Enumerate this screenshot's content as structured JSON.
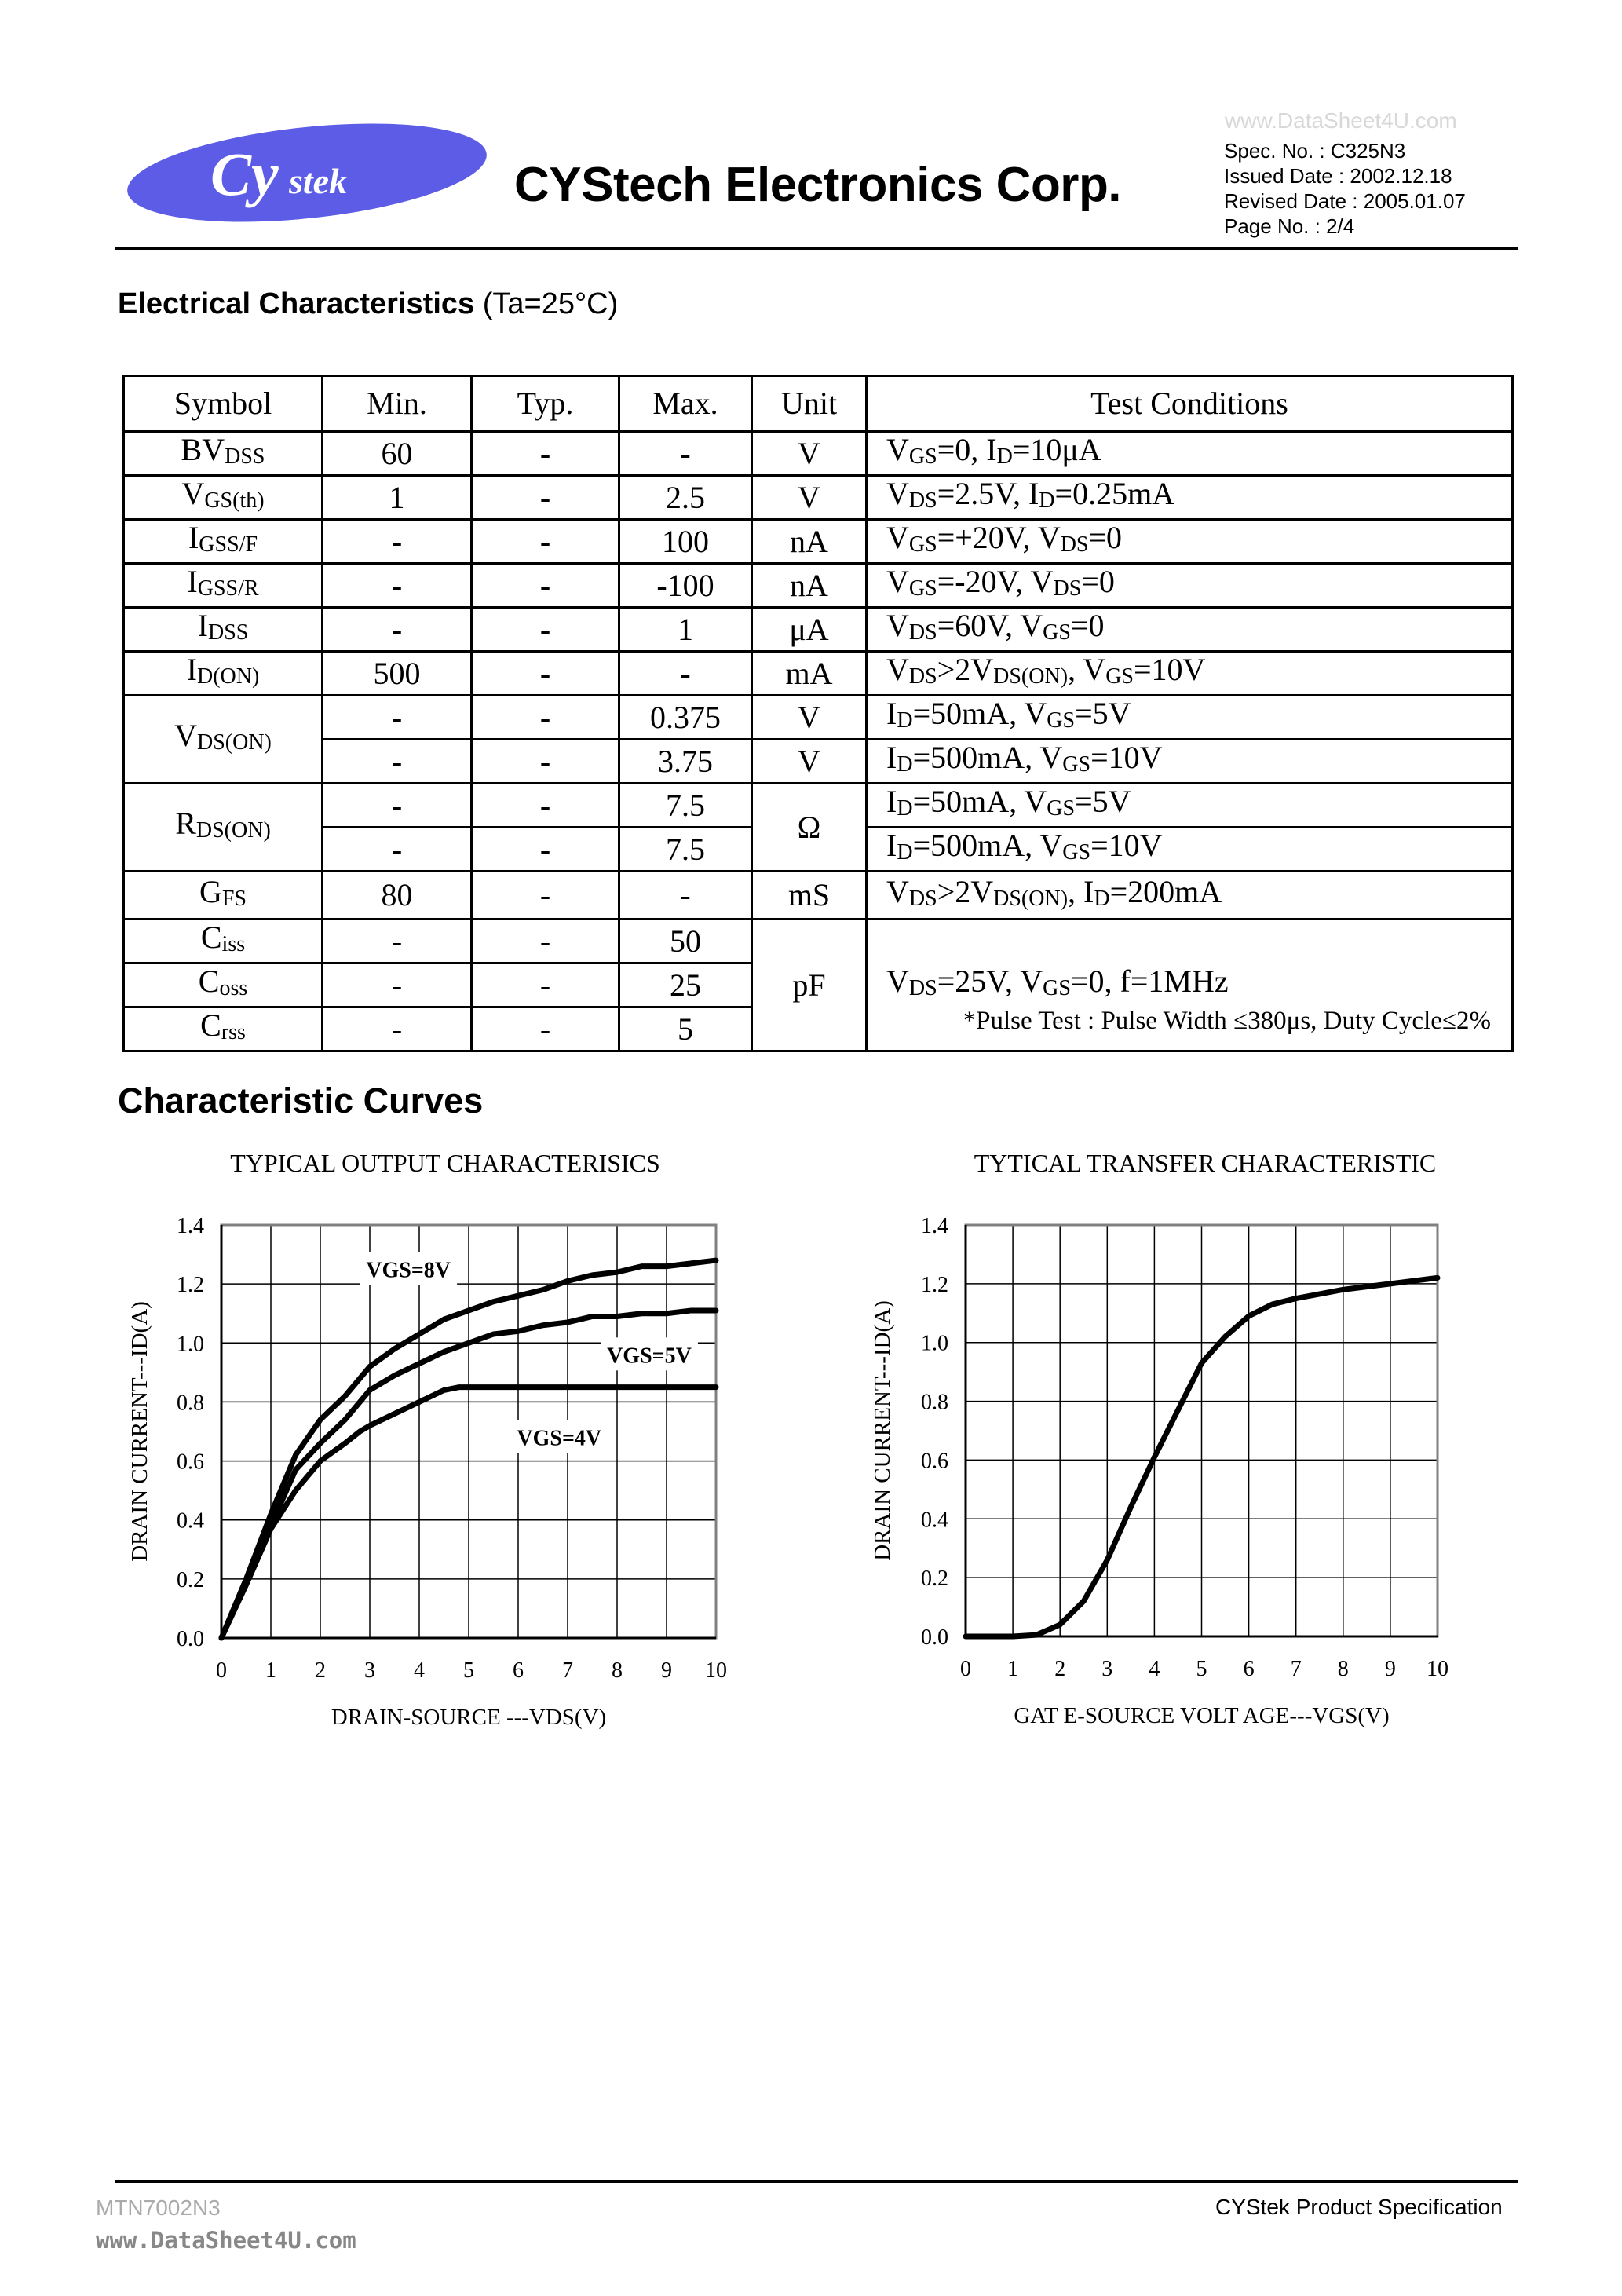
{
  "header": {
    "logo_text": "CyStek",
    "logo_color": "#5c5ce6",
    "company": "CYStech Electronics Corp.",
    "spec_no": "Spec. No. : C325N3",
    "issued": "Issued Date : 2002.12.18",
    "revised": "Revised Date : 2005.01.07",
    "page_no": "Page No. : 2/4",
    "watermark": "www.DataSheet4U.com"
  },
  "section1": {
    "title_bold": "Electrical Characteristics",
    "title_rest": " (Ta=25°C)"
  },
  "table": {
    "headers": [
      "Symbol",
      "Min.",
      "Typ.",
      "Max.",
      "Unit",
      "Test Conditions"
    ],
    "rows": [
      {
        "sym": [
          "BV",
          "DSS"
        ],
        "min": "60",
        "typ": "-",
        "max": "-",
        "unit": "V",
        "cond": [
          [
            "V",
            "GS"
          ],
          [
            "=0, I",
            "D"
          ],
          [
            "=10μA",
            ""
          ]
        ]
      },
      {
        "sym": [
          "V",
          "GS(th)"
        ],
        "min": "1",
        "typ": "-",
        "max": "2.5",
        "unit": "V",
        "cond": [
          [
            "V",
            "DS"
          ],
          [
            "=2.5V, I",
            "D"
          ],
          [
            "=0.25mA",
            ""
          ]
        ]
      },
      {
        "sym": [
          "I",
          "GSS/F"
        ],
        "min": "-",
        "typ": "-",
        "max": "100",
        "unit": "nA",
        "cond": [
          [
            "V",
            "GS"
          ],
          [
            "=+20V, V",
            "DS"
          ],
          [
            "=0",
            ""
          ]
        ]
      },
      {
        "sym": [
          "I",
          "GSS/R"
        ],
        "min": "-",
        "typ": "-",
        "max": "-100",
        "unit": "nA",
        "cond": [
          [
            "V",
            "GS"
          ],
          [
            "=-20V, V",
            "DS"
          ],
          [
            "=0",
            ""
          ]
        ]
      },
      {
        "sym": [
          "I",
          "DSS"
        ],
        "min": "-",
        "typ": "-",
        "max": "1",
        "unit": "μA",
        "cond": [
          [
            "V",
            "DS"
          ],
          [
            "=60V, V",
            "GS"
          ],
          [
            "=0",
            ""
          ]
        ]
      },
      {
        "sym": [
          "I",
          "D(ON)"
        ],
        "min": "500",
        "typ": "-",
        "max": "-",
        "unit": "mA",
        "cond": [
          [
            "V",
            "DS"
          ],
          [
            ">2V",
            "DS(ON)"
          ],
          [
            ", V",
            "GS"
          ],
          [
            "=10V",
            ""
          ]
        ]
      },
      {
        "sym": [
          "V",
          "DS(ON)"
        ],
        "span": 2,
        "min": "-",
        "typ": "-",
        "max": "0.375",
        "unit": "V",
        "cond": [
          [
            "I",
            "D"
          ],
          [
            "=50mA, V",
            "GS"
          ],
          [
            "=5V",
            ""
          ]
        ]
      },
      {
        "min": "-",
        "typ": "-",
        "max": "3.75",
        "unit": "V",
        "cond": [
          [
            "I",
            "D"
          ],
          [
            "=500mA, V",
            "GS"
          ],
          [
            "=10V",
            ""
          ]
        ]
      },
      {
        "sym": [
          "R",
          "DS(ON)"
        ],
        "span": 2,
        "min": "-",
        "typ": "-",
        "max": "7.5",
        "unit": "Ω",
        "unit_span": 2,
        "cond": [
          [
            "I",
            "D"
          ],
          [
            "=50mA, V",
            "GS"
          ],
          [
            "=5V",
            ""
          ]
        ]
      },
      {
        "min": "-",
        "typ": "-",
        "max": "7.5",
        "cond": [
          [
            "I",
            "D"
          ],
          [
            "=500mA, V",
            "GS"
          ],
          [
            "=10V",
            ""
          ]
        ]
      },
      {
        "sym": [
          "G",
          "FS"
        ],
        "min": "80",
        "typ": "-",
        "max": "-",
        "unit": "mS",
        "cond": [
          [
            "V",
            "DS"
          ],
          [
            ">2V",
            "DS(ON)"
          ],
          [
            ", I",
            "D"
          ],
          [
            "=200mA",
            ""
          ]
        ]
      },
      {
        "sym": [
          "C",
          "iss"
        ],
        "min": "-",
        "typ": "-",
        "max": "50",
        "unit": "pF",
        "unit_span": 3,
        "cond_span": 3,
        "cond": [
          [
            "V",
            "DS"
          ],
          [
            "=25V, V",
            "GS"
          ],
          [
            "=0, f=1MHz",
            ""
          ]
        ]
      },
      {
        "sym": [
          "C",
          "oss"
        ],
        "min": "-",
        "typ": "-",
        "max": "25"
      },
      {
        "sym": [
          "C",
          "rss"
        ],
        "min": "-",
        "typ": "-",
        "max": "5"
      }
    ],
    "note": "*Pulse Test : Pulse Width ≤380μs, Duty Cycle≤2%"
  },
  "section2": {
    "title": "Characteristic Curves"
  },
  "chart_data": [
    {
      "type": "line",
      "title": "TYPICAL   OUTPUT  CHARACTERISICS",
      "xlabel": "DRAIN-SOURCE ---VDS(V)",
      "ylabel": "DRAIN  CURRENT---ID(A)",
      "xlim": [
        0,
        10
      ],
      "ylim": [
        0,
        1.4
      ],
      "xticks": [
        "0",
        "1",
        "2",
        "3",
        "4",
        "5",
        "6",
        "7",
        "8",
        "9",
        "10"
      ],
      "yticks": [
        "0.0",
        "0.2",
        "0.4",
        "0.6",
        "0.8",
        "1.0",
        "1.2",
        "1.4"
      ],
      "grid": true,
      "series": [
        {
          "name": "VGS=8V",
          "label_at": [
            3.78,
            1.25
          ],
          "x": [
            0,
            0.5,
            1,
            1.5,
            2,
            2.5,
            3,
            3.5,
            4,
            4.5,
            5,
            5.5,
            6,
            6.5,
            7,
            7.5,
            8,
            8.5,
            9,
            9.5,
            10
          ],
          "y": [
            0,
            0.2,
            0.42,
            0.62,
            0.74,
            0.82,
            0.92,
            0.98,
            1.03,
            1.08,
            1.11,
            1.14,
            1.16,
            1.18,
            1.21,
            1.23,
            1.24,
            1.26,
            1.26,
            1.27,
            1.28
          ]
        },
        {
          "name": "VGS=5V",
          "label_at": [
            8.65,
            0.96
          ],
          "x": [
            0,
            0.5,
            1,
            1.5,
            2,
            2.5,
            3,
            3.5,
            4,
            4.5,
            5,
            5.5,
            6,
            6.5,
            7,
            7.5,
            8,
            8.5,
            9,
            9.5,
            10
          ],
          "y": [
            0,
            0.19,
            0.38,
            0.57,
            0.66,
            0.74,
            0.84,
            0.89,
            0.93,
            0.97,
            1.0,
            1.03,
            1.04,
            1.06,
            1.07,
            1.09,
            1.09,
            1.1,
            1.1,
            1.11,
            1.11
          ]
        },
        {
          "name": "VGS=4V",
          "label_at": [
            6.83,
            0.68
          ],
          "x": [
            0,
            0.5,
            1,
            1.5,
            2,
            2.5,
            2.8,
            3,
            3.5,
            4,
            4.5,
            4.8,
            10
          ],
          "y": [
            0,
            0.18,
            0.37,
            0.5,
            0.6,
            0.66,
            0.7,
            0.72,
            0.76,
            0.8,
            0.84,
            0.85,
            0.85
          ]
        }
      ]
    },
    {
      "type": "line",
      "title": "TYTICAL TRANSFER CHARACTERISTIC",
      "xlabel": "GAT E-SOURCE   VOLT AGE---VGS(V)",
      "ylabel": "DRAIN  CURRENT---ID(A)",
      "xlim": [
        0,
        10
      ],
      "ylim": [
        0,
        1.4
      ],
      "xticks": [
        "0",
        "1",
        "2",
        "3",
        "4",
        "5",
        "6",
        "7",
        "8",
        "9",
        "10"
      ],
      "yticks": [
        "0.0",
        "0.2",
        "0.4",
        "0.6",
        "0.8",
        "1.0",
        "1.2",
        "1.4"
      ],
      "grid": true,
      "series": [
        {
          "x": [
            0,
            1,
            1.5,
            2,
            2.5,
            3,
            3.5,
            4,
            4.5,
            5,
            5.5,
            6,
            6.5,
            7,
            8,
            9,
            10
          ],
          "y": [
            0,
            0,
            0.005,
            0.04,
            0.12,
            0.26,
            0.44,
            0.61,
            0.77,
            0.93,
            1.02,
            1.09,
            1.13,
            1.15,
            1.18,
            1.2,
            1.22
          ]
        }
      ]
    }
  ],
  "footer": {
    "doc_no": "MTN7002N3",
    "watermark": "www.DataSheet4U.com",
    "right": "CYStek Product Specification"
  }
}
